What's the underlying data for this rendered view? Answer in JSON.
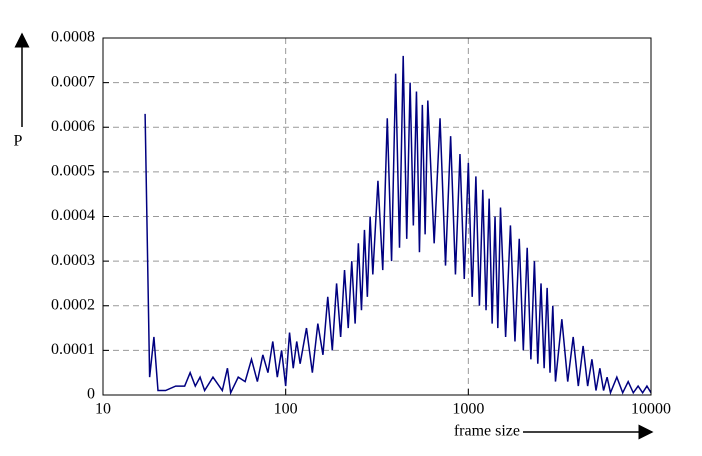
{
  "chart_data": {
    "type": "line",
    "xlabel": "frame size",
    "ylabel": "P",
    "xscale": "log",
    "xlim": [
      10,
      10000
    ],
    "xticks": [
      10,
      100,
      1000,
      10000
    ],
    "ylim": [
      0,
      0.0008
    ],
    "yticks": [
      0,
      0.0001,
      0.0002,
      0.0003,
      0.0004,
      0.0005,
      0.0006,
      0.0007,
      0.0008
    ],
    "grid": true,
    "series": [
      {
        "color": "#000080",
        "x": [
          17,
          18,
          19,
          20,
          22,
          25,
          28,
          30,
          32,
          34,
          36,
          40,
          45,
          48,
          50,
          55,
          60,
          65,
          70,
          75,
          80,
          85,
          90,
          95,
          100,
          105,
          110,
          115,
          120,
          130,
          140,
          150,
          160,
          170,
          180,
          190,
          200,
          210,
          220,
          230,
          240,
          250,
          260,
          270,
          280,
          290,
          300,
          320,
          340,
          360,
          380,
          400,
          420,
          440,
          460,
          480,
          500,
          520,
          540,
          560,
          580,
          600,
          650,
          700,
          750,
          800,
          850,
          900,
          950,
          1000,
          1050,
          1100,
          1150,
          1200,
          1250,
          1300,
          1350,
          1400,
          1450,
          1500,
          1600,
          1700,
          1800,
          1900,
          2000,
          2100,
          2200,
          2300,
          2400,
          2500,
          2600,
          2700,
          2800,
          2900,
          3000,
          3250,
          3500,
          3750,
          4000,
          4250,
          4500,
          4750,
          5000,
          5250,
          5500,
          5750,
          6000,
          6500,
          7000,
          7500,
          8000,
          8500,
          9000,
          9500,
          10000
        ],
        "values": [
          0.00063,
          4e-05,
          0.00013,
          1e-05,
          1e-05,
          2e-05,
          2e-05,
          5e-05,
          2e-05,
          4e-05,
          1e-05,
          4e-05,
          1e-05,
          6e-05,
          5e-06,
          4e-05,
          3e-05,
          8e-05,
          3e-05,
          9e-05,
          5e-05,
          0.00012,
          4e-05,
          0.0001,
          2e-05,
          0.00014,
          6e-05,
          0.00012,
          7e-05,
          0.00015,
          5e-05,
          0.00016,
          9e-05,
          0.00022,
          0.0001,
          0.00025,
          0.00013,
          0.00028,
          0.00015,
          0.0003,
          0.00016,
          0.00034,
          0.00019,
          0.00037,
          0.00022,
          0.0004,
          0.00027,
          0.00048,
          0.00028,
          0.00062,
          0.0003,
          0.00072,
          0.00033,
          0.00076,
          0.00035,
          0.0007,
          0.00038,
          0.00068,
          0.00032,
          0.00065,
          0.00036,
          0.00066,
          0.00034,
          0.00062,
          0.00029,
          0.00058,
          0.00027,
          0.00054,
          0.00026,
          0.00052,
          0.00022,
          0.00049,
          0.0002,
          0.00046,
          0.00019,
          0.00044,
          0.00016,
          0.0004,
          0.00015,
          0.00042,
          0.00013,
          0.00038,
          0.00012,
          0.00035,
          0.0001,
          0.00033,
          8e-05,
          0.0003,
          7e-05,
          0.00025,
          6e-05,
          0.00024,
          5e-05,
          0.0002,
          3e-05,
          0.00017,
          3e-05,
          0.00013,
          2e-05,
          0.00011,
          2e-05,
          8e-05,
          1e-05,
          6e-05,
          1e-05,
          4e-05,
          5e-06,
          4e-05,
          5e-06,
          3e-05,
          5e-06,
          2e-05,
          5e-06,
          2e-05,
          5e-06
        ]
      }
    ]
  }
}
